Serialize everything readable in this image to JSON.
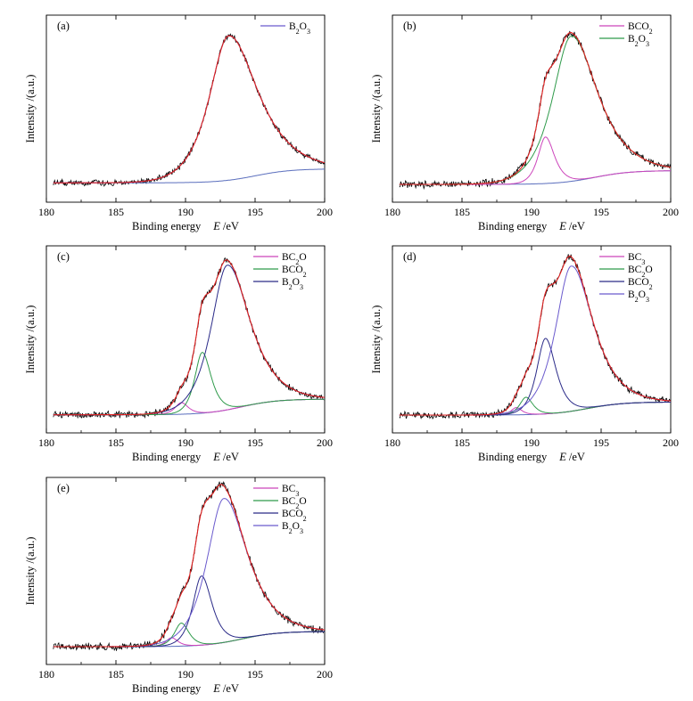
{
  "colors": {
    "raw": "#000000",
    "envelope": "#e02020",
    "background": "#5a6ebd",
    "bc3": "#cc44bb",
    "bc2o": "#2e9a4a",
    "bco2": "#2a2a88",
    "b2o3": "#6a5acd"
  },
  "chart_data": [
    {
      "type": "line",
      "panel_label": "(a)",
      "xlabel_text": "Binding energy",
      "xlabel_var": "E",
      "xlabel_unit": "/eV",
      "ylabel": "Intensity /(a.u.)",
      "xlim": [
        180,
        200
      ],
      "xticks": [
        "180",
        "185",
        "190",
        "195",
        "200"
      ],
      "baseline": {
        "y0": 0.1,
        "y1": 1.0,
        "center": 195.0,
        "width": 1.3
      },
      "peak_scale": 9.3,
      "noise": 0.16,
      "series": [
        {
          "key": "b2o3",
          "name": "B",
          "sub": "2",
          "name2": "O",
          "sub2": "3",
          "center": 193.1,
          "height": 1.0,
          "width": 1.55,
          "tail": 0.5
        }
      ]
    },
    {
      "type": "line",
      "panel_label": "(b)",
      "xlabel_text": "Binding energy",
      "xlabel_var": "E",
      "xlabel_unit": "/eV",
      "ylabel": "Intensity /(a.u.)",
      "xlim": [
        180,
        200
      ],
      "xticks": [
        "180",
        "185",
        "190",
        "195",
        "200"
      ],
      "baseline": {
        "y0": 0.0,
        "y1": 0.95,
        "center": 194.5,
        "width": 1.3
      },
      "peak_scale": 10.0,
      "noise": 0.2,
      "series": [
        {
          "key": "bc3",
          "name": "BCO",
          "sub": "2",
          "name2": "",
          "sub2": "",
          "center": 191.0,
          "height": 0.32,
          "width": 0.6,
          "tail": 0.2
        },
        {
          "key": "bc2o",
          "name": "B",
          "sub": "2",
          "name2": "O",
          "sub2": "3",
          "center": 192.85,
          "height": 1.0,
          "width": 1.5,
          "tail": 0.4
        }
      ]
    },
    {
      "type": "line",
      "panel_label": "(c)",
      "xlabel_text": "Binding energy",
      "xlabel_var": "E",
      "xlabel_unit": "/eV",
      "ylabel": "Intensity /(a.u.)",
      "xlim": [
        180,
        200
      ],
      "xticks": [
        "180",
        "185",
        "190",
        "195",
        "200"
      ],
      "baseline": {
        "y0": 0.02,
        "y1": 1.05,
        "center": 194.0,
        "width": 1.3
      },
      "peak_scale": 9.5,
      "noise": 0.17,
      "series": [
        {
          "key": "bc3",
          "name": "BC",
          "sub": "2",
          "name2": "O",
          "sub2": "",
          "center": 189.7,
          "height": 0.08,
          "width": 0.5,
          "tail": 0.1
        },
        {
          "key": "bc2o",
          "name": "BCO",
          "sub": "2",
          "name2": "",
          "sub2": "",
          "center": 191.2,
          "height": 0.42,
          "width": 0.6,
          "tail": 0.2
        },
        {
          "key": "bco2",
          "name": "B",
          "sub": "2",
          "name2": "O",
          "sub2": "3",
          "center": 193.0,
          "height": 1.0,
          "width": 1.3,
          "tail": 0.4
        }
      ]
    },
    {
      "type": "line",
      "panel_label": "(d)",
      "xlabel_text": "Binding energy",
      "xlabel_var": "E",
      "xlabel_unit": "/eV",
      "ylabel": "Intensity /(a.u.)",
      "xlim": [
        180,
        200
      ],
      "xticks": [
        "180",
        "185",
        "190",
        "195",
        "200"
      ],
      "baseline": {
        "y0": 0.0,
        "y1": 0.9,
        "center": 194.0,
        "width": 1.3
      },
      "peak_scale": 10.0,
      "noise": 0.18,
      "series": [
        {
          "key": "bc3",
          "name": "BC",
          "sub": "3",
          "name2": "",
          "sub2": "",
          "center": 188.9,
          "height": 0.05,
          "width": 0.4,
          "tail": 0.1
        },
        {
          "key": "bc2o",
          "name": "BC",
          "sub": "2",
          "name2": "O",
          "sub2": "",
          "center": 189.6,
          "height": 0.12,
          "width": 0.5,
          "tail": 0.1
        },
        {
          "key": "bco2",
          "name": "BCO",
          "sub": "2",
          "name2": "",
          "sub2": "",
          "center": 191.0,
          "height": 0.52,
          "width": 0.7,
          "tail": 0.2
        },
        {
          "key": "b2o3",
          "name": "B",
          "sub": "2",
          "name2": "O",
          "sub2": "3",
          "center": 192.85,
          "height": 1.0,
          "width": 1.25,
          "tail": 0.4
        }
      ]
    },
    {
      "type": "line",
      "panel_label": "(e)",
      "xlabel_text": "Binding energy",
      "xlabel_var": "E",
      "xlabel_unit": "/eV",
      "ylabel": "Intensity /(a.u.)",
      "xlim": [
        180,
        200
      ],
      "xticks": [
        "180",
        "185",
        "190",
        "195",
        "200"
      ],
      "baseline": {
        "y0": 0.0,
        "y1": 0.95,
        "center": 194.0,
        "width": 1.3
      },
      "peak_scale": 9.0,
      "noise": 0.18,
      "series": [
        {
          "key": "bc3",
          "name": "BC",
          "sub": "3",
          "name2": "",
          "sub2": "",
          "center": 189.0,
          "height": 0.06,
          "width": 0.45,
          "tail": 0.1
        },
        {
          "key": "bc2o",
          "name": "BC",
          "sub": "2",
          "name2": "O",
          "sub2": "",
          "center": 189.7,
          "height": 0.16,
          "width": 0.55,
          "tail": 0.1
        },
        {
          "key": "bco2",
          "name": "BCO",
          "sub": "2",
          "name2": "",
          "sub2": "",
          "center": 191.15,
          "height": 0.48,
          "width": 0.7,
          "tail": 0.2
        },
        {
          "key": "b2o3",
          "name": "B",
          "sub": "2",
          "name2": "O",
          "sub2": "3",
          "center": 192.75,
          "height": 1.0,
          "width": 1.35,
          "tail": 0.4
        }
      ]
    }
  ]
}
